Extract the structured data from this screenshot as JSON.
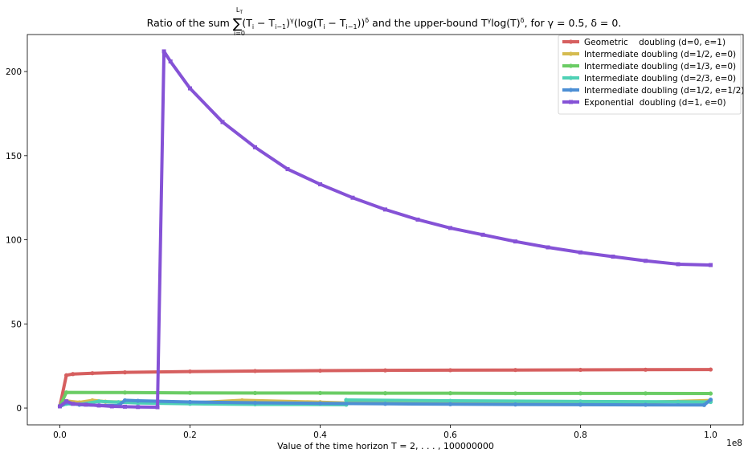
{
  "chart_data": {
    "type": "line",
    "title": {
      "prefix": "Ratio of the sum ",
      "sigma": "∑",
      "upper": "L",
      "upper_sub": "T",
      "lower": "i=0",
      "body": "(T",
      "sub1": "i",
      "mid1": " − T",
      "sub2": "i−1",
      "mid2": ")",
      "sup1": "γ",
      "mid3": "(log(T",
      "sub3": "i",
      "mid4": " − T",
      "sub4": "i−1",
      "mid5": "))",
      "sup2": "δ",
      "mid6": " and the upper-bound T",
      "sup3": "γ",
      "mid7": "log(T)",
      "sup4": "δ",
      "suffix": ", for γ = 0.5, δ = 0."
    },
    "xlabel": "Value of the time horizon T = 2, . . . , 100000000",
    "ylabel": "",
    "x_offset_text": "1e8",
    "x_range": [
      -0.05,
      1.05
    ],
    "y_range": [
      -10,
      222
    ],
    "x_ticks": [
      0.0,
      0.2,
      0.4,
      0.6,
      0.8,
      1.0
    ],
    "x_tick_labels": [
      "0.0",
      "0.2",
      "0.4",
      "0.6",
      "0.8",
      "1.0"
    ],
    "y_ticks": [
      0,
      50,
      100,
      150,
      200
    ],
    "y_tick_labels": [
      "0",
      "50",
      "100",
      "150",
      "200"
    ],
    "grid": false,
    "legend_position": "top-right",
    "series": [
      {
        "name": "Geometric    doubling (d=0, e=1)",
        "color": "#d65f5f",
        "marker": "o",
        "points": [
          [
            0.0,
            1.0
          ],
          [
            0.01,
            19.5
          ],
          [
            0.02,
            20.2
          ],
          [
            0.05,
            20.7
          ],
          [
            0.1,
            21.2
          ],
          [
            0.2,
            21.7
          ],
          [
            0.3,
            22.0
          ],
          [
            0.4,
            22.2
          ],
          [
            0.5,
            22.4
          ],
          [
            0.6,
            22.5
          ],
          [
            0.7,
            22.6
          ],
          [
            0.8,
            22.7
          ],
          [
            0.9,
            22.8
          ],
          [
            1.0,
            22.9
          ]
        ]
      },
      {
        "name": "Intermediate doubling (d=1/2, e=0)",
        "color": "#d5bb4f",
        "marker": "o",
        "points": [
          [
            0.0,
            1.0
          ],
          [
            0.01,
            4.2
          ],
          [
            0.03,
            3.4
          ],
          [
            0.05,
            4.6
          ],
          [
            0.07,
            3.8
          ],
          [
            0.12,
            3.4
          ],
          [
            0.2,
            3.0
          ],
          [
            0.28,
            4.6
          ],
          [
            0.4,
            3.5
          ],
          [
            0.44,
            3.0
          ],
          [
            0.6,
            2.7
          ],
          [
            0.8,
            2.4
          ],
          [
            1.0,
            4.5
          ]
        ]
      },
      {
        "name": "Intermediate doubling (d=1/3, e=0)",
        "color": "#6acc64",
        "marker": "o",
        "points": [
          [
            0.0,
            1.0
          ],
          [
            0.01,
            9.3
          ],
          [
            0.1,
            9.2
          ],
          [
            0.2,
            9.0
          ],
          [
            0.3,
            8.9
          ],
          [
            0.4,
            8.9
          ],
          [
            0.5,
            8.8
          ],
          [
            0.6,
            8.8
          ],
          [
            0.7,
            8.7
          ],
          [
            0.8,
            8.7
          ],
          [
            0.9,
            8.7
          ],
          [
            1.0,
            8.6
          ]
        ]
      },
      {
        "name": "Intermediate doubling (d=2/3, e=0)",
        "color": "#4fd1b5",
        "marker": "o",
        "points": [
          [
            0.0,
            1.0
          ],
          [
            0.01,
            2.5
          ],
          [
            0.03,
            2.2
          ],
          [
            0.06,
            4.0
          ],
          [
            0.09,
            3.5
          ],
          [
            0.12,
            3.0
          ],
          [
            0.2,
            2.5
          ],
          [
            0.3,
            2.2
          ],
          [
            0.44,
            2.0
          ],
          [
            0.44,
            4.8
          ],
          [
            0.6,
            4.3
          ],
          [
            0.8,
            3.9
          ],
          [
            0.95,
            3.7
          ],
          [
            1.0,
            3.6
          ]
        ]
      },
      {
        "name": "Intermediate doubling (d=1/2, e=1/2)",
        "color": "#4c8fd5",
        "marker": "o",
        "points": [
          [
            0.0,
            1.0
          ],
          [
            0.01,
            3.2
          ],
          [
            0.03,
            2.0
          ],
          [
            0.06,
            1.6
          ],
          [
            0.09,
            1.5
          ],
          [
            0.1,
            4.6
          ],
          [
            0.12,
            4.3
          ],
          [
            0.2,
            3.6
          ],
          [
            0.3,
            3.1
          ],
          [
            0.4,
            2.8
          ],
          [
            0.5,
            2.5
          ],
          [
            0.6,
            2.3
          ],
          [
            0.7,
            2.1
          ],
          [
            0.8,
            2.0
          ],
          [
            0.9,
            1.9
          ],
          [
            0.99,
            1.8
          ],
          [
            1.0,
            5.0
          ]
        ]
      },
      {
        "name": "Exponential  doubling (d=1, e=0)",
        "color": "#8552d6",
        "marker": "s",
        "points": [
          [
            0.0,
            1.0
          ],
          [
            0.01,
            4.0
          ],
          [
            0.02,
            2.5
          ],
          [
            0.04,
            2.0
          ],
          [
            0.06,
            1.5
          ],
          [
            0.08,
            1.0
          ],
          [
            0.1,
            0.8
          ],
          [
            0.12,
            0.6
          ],
          [
            0.15,
            0.5
          ],
          [
            0.16,
            212.0
          ],
          [
            0.17,
            206.0
          ],
          [
            0.2,
            190.0
          ],
          [
            0.25,
            170.0
          ],
          [
            0.3,
            155.0
          ],
          [
            0.35,
            142.0
          ],
          [
            0.4,
            133.0
          ],
          [
            0.45,
            125.0
          ],
          [
            0.5,
            118.0
          ],
          [
            0.55,
            112.0
          ],
          [
            0.6,
            107.0
          ],
          [
            0.65,
            103.0
          ],
          [
            0.7,
            99.0
          ],
          [
            0.75,
            95.5
          ],
          [
            0.8,
            92.5
          ],
          [
            0.85,
            90.0
          ],
          [
            0.9,
            87.5
          ],
          [
            0.95,
            85.5
          ],
          [
            1.0,
            85.0
          ]
        ]
      }
    ]
  }
}
